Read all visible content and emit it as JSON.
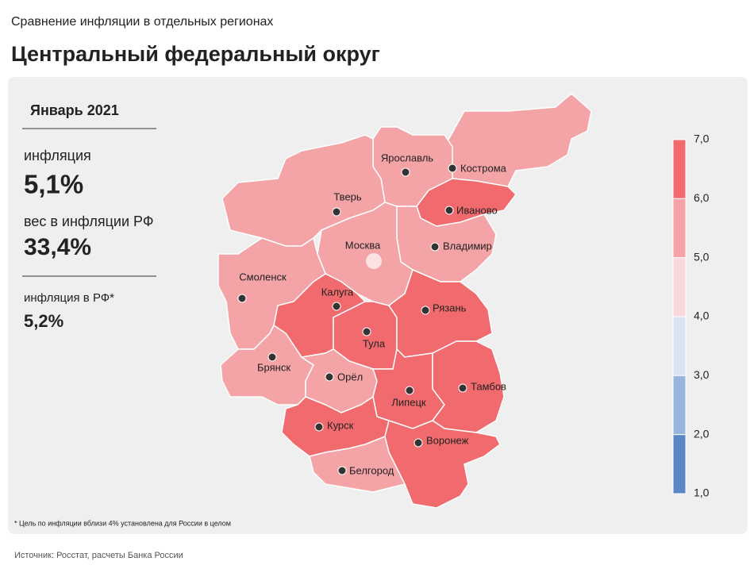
{
  "header": {
    "subtitle": "Сравнение инфляции  в отдельных регионах",
    "title": "Центральный федеральный округ"
  },
  "panel": {
    "period": "Январь 2021",
    "inflation_label": "инфляция",
    "inflation_value": "5,1%",
    "weight_label": "вес в инфляции  РФ",
    "weight_value": "33,4%",
    "rf_label": "инфляция  в РФ*",
    "rf_value": "5,2%"
  },
  "regions": [
    {
      "name": "Кострома",
      "color": "#f4a3a6"
    },
    {
      "name": "Ярославль",
      "color": "#f4a3a6"
    },
    {
      "name": "Тверь",
      "color": "#f4a3a6"
    },
    {
      "name": "Иваново",
      "color": "#f06a6e"
    },
    {
      "name": "Владимир",
      "color": "#f4a3a6"
    },
    {
      "name": "Москва",
      "color": "#f4a3a6"
    },
    {
      "name": "Смоленск",
      "color": "#f4a3a6"
    },
    {
      "name": "Калуга",
      "color": "#f06a6e"
    },
    {
      "name": "Тула",
      "color": "#f06a6e"
    },
    {
      "name": "Рязань",
      "color": "#f06a6e"
    },
    {
      "name": "Брянск",
      "color": "#f4a3a6"
    },
    {
      "name": "Орёл",
      "color": "#f4a3a6"
    },
    {
      "name": "Липецк",
      "color": "#f06a6e"
    },
    {
      "name": "Тамбов",
      "color": "#f06a6e"
    },
    {
      "name": "Курск",
      "color": "#f06a6e"
    },
    {
      "name": "Воронеж",
      "color": "#f06a6e"
    },
    {
      "name": "Белгород",
      "color": "#f4a3a6"
    }
  ],
  "legend": {
    "ticks": [
      "7,0",
      "6,0",
      "5,0",
      "4,0",
      "3,0",
      "2,0",
      "1,0"
    ],
    "colors": [
      "#f06a6e",
      "#f4a3a6",
      "#fbd8dc",
      "#d9e3f2",
      "#9ab5dc",
      "#5a87c5"
    ]
  },
  "footnote": "* Цель по инфляции вблизи 4% установлена для России в целом",
  "source": "Источник: Росстат, расчеты Банка России"
}
